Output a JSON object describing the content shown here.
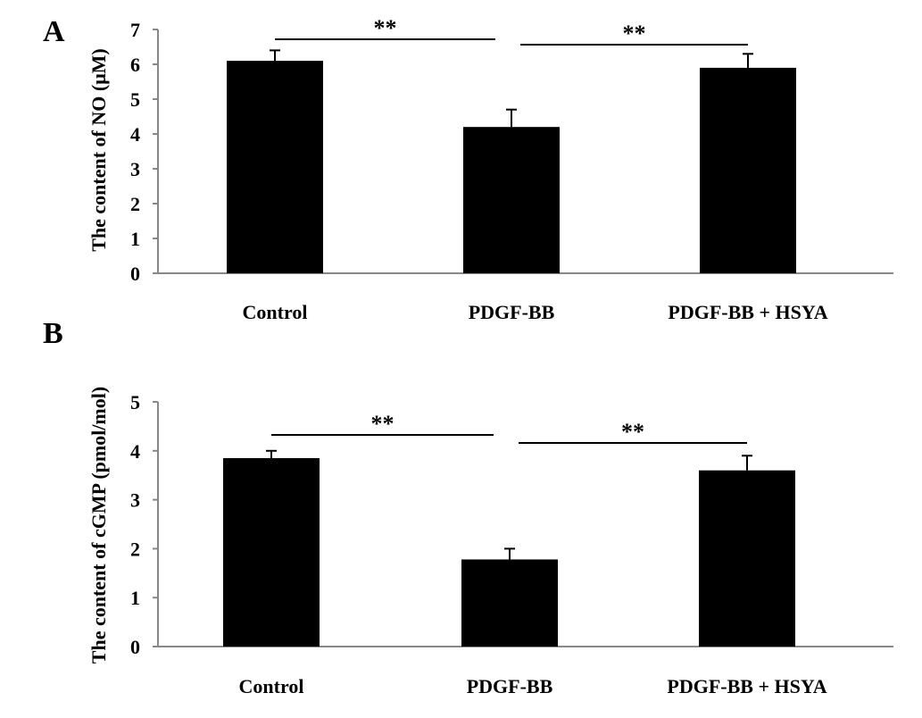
{
  "chart_data": [
    {
      "type": "bar",
      "panel": "A",
      "categories": [
        "Control",
        "PDGF-BB",
        "PDGF-BB + HSYA"
      ],
      "values": [
        6.1,
        4.2,
        5.9
      ],
      "errors": [
        0.3,
        0.5,
        0.4
      ],
      "ylabel": "The content of NO (μM)",
      "xlabel": "",
      "ylim": [
        0,
        7
      ],
      "yticks": [
        "0",
        "1",
        "2",
        "3",
        "4",
        "5",
        "6",
        "7"
      ],
      "significance": [
        {
          "from": 0,
          "to": 1,
          "label": "**"
        },
        {
          "from": 1,
          "to": 2,
          "label": "**"
        }
      ],
      "bar_color": "#000000",
      "grid": false,
      "legend": "none"
    },
    {
      "type": "bar",
      "panel": "B",
      "categories": [
        "Control",
        "PDGF-BB",
        "PDGF-BB + HSYA"
      ],
      "values": [
        3.85,
        1.78,
        3.6
      ],
      "errors": [
        0.15,
        0.22,
        0.3
      ],
      "ylabel": "The content of cGMP (pmol/mol)",
      "xlabel": "",
      "ylim": [
        0,
        5
      ],
      "yticks": [
        "0",
        "1",
        "2",
        "3",
        "4",
        "5"
      ],
      "significance": [
        {
          "from": 0,
          "to": 1,
          "label": "**"
        },
        {
          "from": 1,
          "to": 2,
          "label": "**"
        }
      ],
      "bar_color": "#000000",
      "grid": false,
      "legend": "none"
    }
  ]
}
